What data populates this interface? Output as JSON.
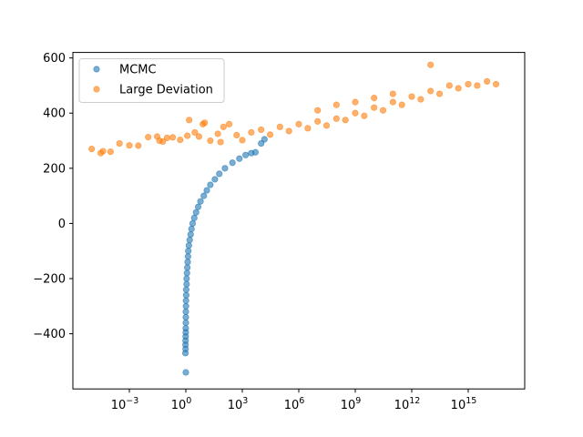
{
  "chart_data": {
    "type": "scatter",
    "title": "",
    "xlabel": "",
    "ylabel": "",
    "x_scale": "log",
    "xlim": [
      1e-06,
      1e+18
    ],
    "ylim": [
      -600,
      620
    ],
    "x_ticks": [
      {
        "value": 0.001,
        "base": "10",
        "exp": "−3"
      },
      {
        "value": 1,
        "base": "10",
        "exp": "0"
      },
      {
        "value": 1000,
        "base": "10",
        "exp": "3"
      },
      {
        "value": 1000000,
        "base": "10",
        "exp": "6"
      },
      {
        "value": 1000000000,
        "base": "10",
        "exp": "9"
      },
      {
        "value": 1000000000000,
        "base": "10",
        "exp": "12"
      },
      {
        "value": 1000000000000000,
        "base": "10",
        "exp": "15"
      }
    ],
    "y_ticks": [
      {
        "value": 600,
        "label": "600"
      },
      {
        "value": 400,
        "label": "400"
      },
      {
        "value": 200,
        "label": "200"
      },
      {
        "value": 0,
        "label": "0"
      },
      {
        "value": -200,
        "label": "−200"
      },
      {
        "value": -400,
        "label": "−400"
      }
    ],
    "grid": false,
    "legend_position": "upper-left",
    "series": [
      {
        "name": "MCMC",
        "color": "#1f77b4",
        "alpha": 0.6,
        "points": [
          [
            1,
            -540
          ],
          [
            0.95,
            -470
          ],
          [
            0.97,
            -455
          ],
          [
            0.96,
            -440
          ],
          [
            0.97,
            -425
          ],
          [
            0.98,
            -410
          ],
          [
            0.99,
            -395
          ],
          [
            0.99,
            -380
          ],
          [
            1.0,
            -360
          ],
          [
            1.0,
            -340
          ],
          [
            1.0,
            -320
          ],
          [
            1.02,
            -300
          ],
          [
            1.02,
            -280
          ],
          [
            1.05,
            -260
          ],
          [
            1.05,
            -240
          ],
          [
            1.1,
            -220
          ],
          [
            1.1,
            -200
          ],
          [
            1.15,
            -180
          ],
          [
            1.2,
            -160
          ],
          [
            1.25,
            -140
          ],
          [
            1.3,
            -120
          ],
          [
            1.35,
            -100
          ],
          [
            1.45,
            -80
          ],
          [
            1.6,
            -60
          ],
          [
            1.8,
            -40
          ],
          [
            2.0,
            -20
          ],
          [
            2.3,
            0
          ],
          [
            2.8,
            20
          ],
          [
            3.5,
            40
          ],
          [
            4.5,
            60
          ],
          [
            6,
            80
          ],
          [
            9,
            100
          ],
          [
            13,
            120
          ],
          [
            20,
            140
          ],
          [
            35,
            160
          ],
          [
            60,
            180
          ],
          [
            120,
            200
          ],
          [
            300,
            220
          ],
          [
            700,
            235
          ],
          [
            1500,
            248
          ],
          [
            3000,
            255
          ],
          [
            5000,
            258
          ],
          [
            10000,
            290
          ],
          [
            15000,
            305
          ]
        ]
      },
      {
        "name": "Large Deviation",
        "color": "#ff7f0e",
        "alpha": 0.6,
        "points": [
          [
            1e-05,
            270
          ],
          [
            3e-05,
            255
          ],
          [
            4e-05,
            262
          ],
          [
            0.0001,
            260
          ],
          [
            0.0003,
            290
          ],
          [
            0.001,
            283
          ],
          [
            0.003,
            282
          ],
          [
            0.01,
            313
          ],
          [
            0.03,
            315
          ],
          [
            0.04,
            300
          ],
          [
            0.06,
            297
          ],
          [
            0.1,
            310
          ],
          [
            0.2,
            312
          ],
          [
            0.5,
            303
          ],
          [
            1.2,
            318
          ],
          [
            1.5,
            375
          ],
          [
            3,
            330
          ],
          [
            5,
            315
          ],
          [
            8,
            360
          ],
          [
            10,
            365
          ],
          [
            20,
            300
          ],
          [
            50,
            325
          ],
          [
            70,
            295
          ],
          [
            100,
            350
          ],
          [
            200,
            360
          ],
          [
            500,
            320
          ],
          [
            1000,
            302
          ],
          [
            3000,
            330
          ],
          [
            10000,
            340
          ],
          [
            30000,
            322
          ],
          [
            100000,
            350
          ],
          [
            300000,
            335
          ],
          [
            1000000,
            360
          ],
          [
            3000000,
            345
          ],
          [
            10000000,
            370
          ],
          [
            30000000,
            355
          ],
          [
            100000000,
            380
          ],
          [
            300000000,
            375
          ],
          [
            1000000000,
            400
          ],
          [
            3000000000,
            390
          ],
          [
            10000000000,
            420
          ],
          [
            30000000000,
            410
          ],
          [
            100000000000,
            440
          ],
          [
            300000000000,
            430
          ],
          [
            1000000000000,
            460
          ],
          [
            3000000000000,
            450
          ],
          [
            10000000000000,
            480
          ],
          [
            30000000000000,
            470
          ],
          [
            100000000000000,
            500
          ],
          [
            300000000000000,
            490
          ],
          [
            1000000000000000,
            505
          ],
          [
            3000000000000000,
            500
          ],
          [
            10000000000000000,
            515
          ],
          [
            30000000000000000,
            505
          ],
          [
            10000000000000,
            575
          ],
          [
            100000000000,
            470
          ],
          [
            10000000000,
            455
          ],
          [
            1000000000,
            440
          ],
          [
            100000000,
            430
          ],
          [
            10000000,
            410
          ]
        ]
      }
    ]
  }
}
